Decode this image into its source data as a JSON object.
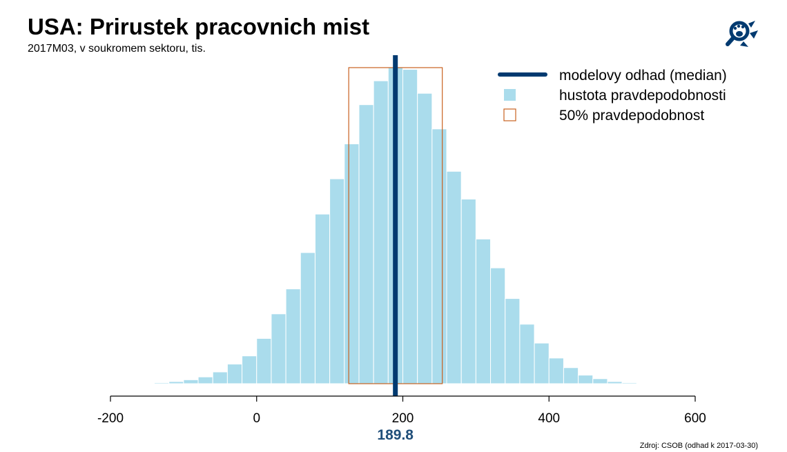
{
  "header": {
    "title": "USA: Prirustek pracovnich mist",
    "subtitle": "2017M03, v soukromem sektoru, tis."
  },
  "logo": {
    "icon": "magnifier-paw-icon",
    "color": "#003a70"
  },
  "source": "Zdroj: CSOB (odhad k 2017-03-30)",
  "colors": {
    "bars": "#aadcec",
    "median": "#003a70",
    "interval": "#c9601e",
    "median_label": "#1f4e79"
  },
  "chart_data": {
    "type": "bar",
    "subtype": "histogram",
    "bin_width": 20,
    "bin_starts": [
      -140,
      -120,
      -100,
      -80,
      -60,
      -40,
      -20,
      0,
      20,
      40,
      60,
      80,
      100,
      120,
      140,
      160,
      180,
      200,
      220,
      240,
      260,
      280,
      300,
      320,
      340,
      360,
      380,
      400,
      420,
      440,
      460,
      480,
      500
    ],
    "density": [
      0.3,
      0.6,
      1.1,
      1.9,
      3.3,
      5.5,
      7.8,
      12.7,
      19.6,
      26.6,
      36.8,
      47.6,
      57.5,
      67.3,
      78.3,
      85.0,
      88.7,
      88.2,
      81.5,
      71.5,
      59.6,
      51.8,
      40.6,
      32.5,
      23.9,
      16.7,
      11.4,
      7.2,
      4.5,
      2.4,
      1.4,
      0.6,
      0.3
    ],
    "median": 189.8,
    "median_label": "189.8",
    "interval_50": [
      126,
      254
    ],
    "xlim": [
      -200,
      600
    ],
    "xticks": [
      -200,
      0,
      200,
      400,
      600
    ],
    "xtick_labels": [
      "-200",
      "0",
      "200",
      "400",
      "600"
    ],
    "grid": false,
    "legend_position": "top-right",
    "legend": [
      {
        "label": "modelovy odhad (median)",
        "kind": "line"
      },
      {
        "label": "hustota pravdepodobnosti",
        "kind": "fill"
      },
      {
        "label": "50% pravdepodobnost",
        "kind": "box"
      }
    ]
  }
}
